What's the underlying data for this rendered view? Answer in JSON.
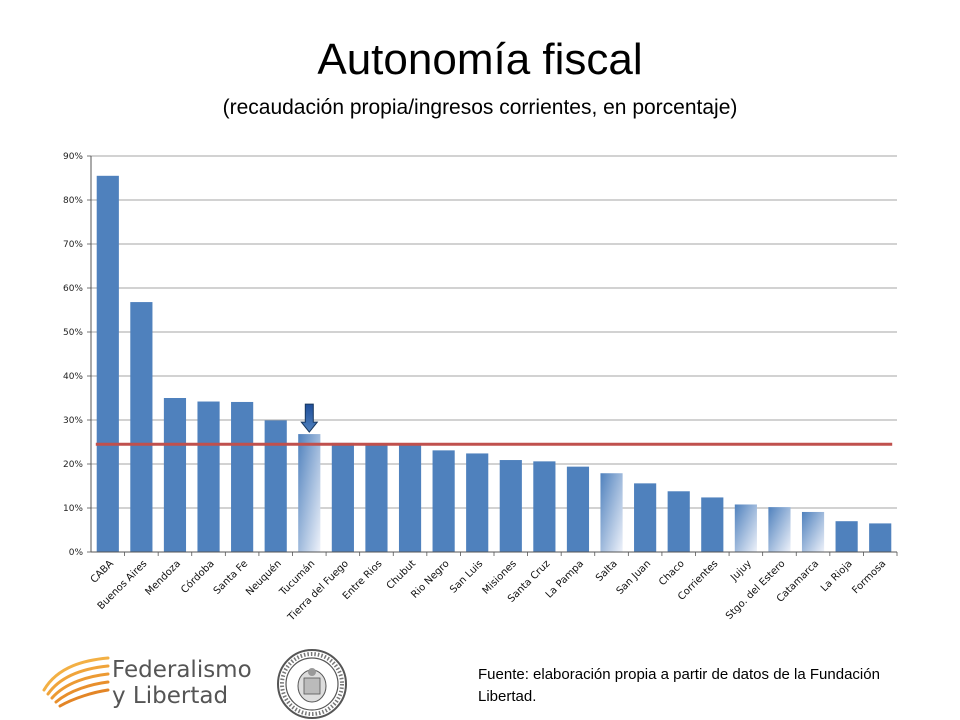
{
  "title": "Autonomía fiscal",
  "subtitle": "(recaudación propia/ingresos corrientes, en porcentaje)",
  "chart_data": {
    "type": "bar",
    "categories": [
      "CABA",
      "Buenos Aires",
      "Mendoza",
      "Córdoba",
      "Santa Fe",
      "Neuquén",
      "Tucumán",
      "Tierra del Fuego",
      "Entre Rios",
      "Chubut",
      "Rio Negro",
      "San Luis",
      "Misiones",
      "Santa Cruz",
      "La Pampa",
      "Salta",
      "San Juan",
      "Chaco",
      "Corrientes",
      "Jujuy",
      "Stgo. del Estero",
      "Catamarca",
      "La Rioja",
      "Formosa"
    ],
    "values": [
      85.5,
      56.8,
      35.0,
      34.2,
      34.1,
      29.9,
      26.8,
      24.8,
      24.5,
      24.5,
      23.1,
      22.4,
      20.9,
      20.6,
      19.4,
      17.9,
      15.6,
      13.8,
      12.4,
      10.8,
      10.2,
      9.1,
      7.0,
      6.5
    ],
    "highlight": [
      false,
      false,
      false,
      false,
      false,
      false,
      true,
      false,
      false,
      false,
      false,
      false,
      false,
      false,
      false,
      true,
      false,
      false,
      false,
      true,
      true,
      true,
      false,
      false
    ],
    "average_line": 24.5,
    "marker_category": "Tucumán",
    "ylim": [
      0,
      90
    ],
    "yticks": [
      0,
      10,
      20,
      30,
      40,
      50,
      60,
      70,
      80,
      90
    ],
    "ytick_labels": [
      "0%",
      "10%",
      "20%",
      "30%",
      "40%",
      "50%",
      "60%",
      "70%",
      "80%",
      "90%"
    ],
    "grid": true,
    "colors": {
      "bar": "#4f81bd",
      "bar_highlight_top": "#4f81bd",
      "bar_highlight_bottom": "#e6ecf6",
      "average_line": "#c0504d",
      "grid": "#868686"
    }
  },
  "footer": {
    "logo_line1": "Federalismo",
    "logo_line2": "y Libertad",
    "source": "Fuente: elaboración propia a partir de datos de la Fundación Libertad."
  }
}
